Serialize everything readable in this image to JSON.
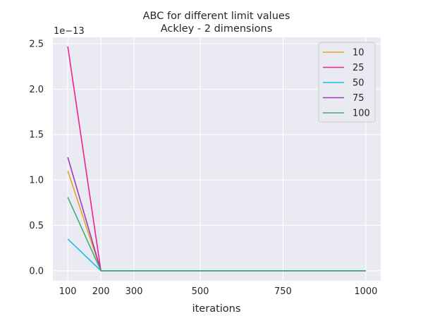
{
  "chart_data": {
    "type": "line",
    "title": "ABC for different limit values",
    "subtitle": "Ackley - 2 dimensions",
    "xlabel": "iterations",
    "ylabel": "",
    "y_scale_label": "1e−13",
    "x_ticks": [
      100,
      200,
      300,
      500,
      750,
      1000
    ],
    "x_tick_labels": [
      "100",
      "200",
      "300",
      "500",
      "750",
      "1000"
    ],
    "y_ticks": [
      0.0,
      0.5,
      1.0,
      1.5,
      2.0,
      2.5
    ],
    "y_tick_labels": [
      "0.0",
      "0.5",
      "1.0",
      "1.5",
      "2.0",
      "2.5"
    ],
    "xlim": [
      55,
      1045
    ],
    "ylim": [
      -0.11,
      2.57
    ],
    "y_unit_multiplier": "1e-13",
    "grid": true,
    "legend_position": "top-right",
    "x": [
      100,
      200,
      300,
      500,
      750,
      1000
    ],
    "series": [
      {
        "name": "10",
        "color": "#E0A526",
        "values": [
          1.1,
          0.0,
          0.0,
          0.0,
          0.0,
          0.0
        ]
      },
      {
        "name": "25",
        "color": "#F0228E",
        "values": [
          2.47,
          0.0,
          0.0,
          0.0,
          0.0,
          0.0
        ]
      },
      {
        "name": "50",
        "color": "#1CBDEB",
        "values": [
          0.35,
          0.0,
          0.0,
          0.0,
          0.0,
          0.0
        ]
      },
      {
        "name": "75",
        "color": "#9B3BBE",
        "values": [
          1.25,
          0.0,
          0.0,
          0.0,
          0.0,
          0.0
        ]
      },
      {
        "name": "100",
        "color": "#3DAF77",
        "values": [
          0.81,
          0.0,
          0.0,
          0.0,
          0.0,
          0.0
        ]
      }
    ]
  }
}
